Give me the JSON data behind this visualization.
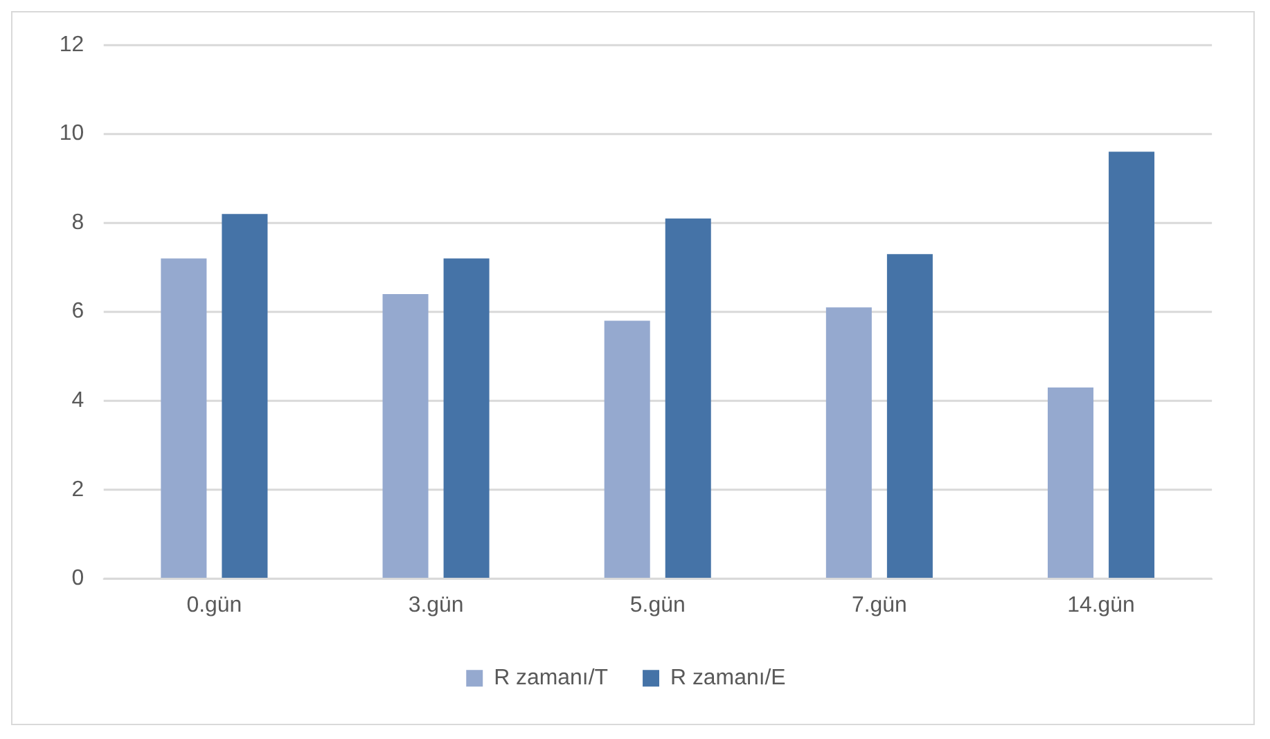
{
  "chart_data": {
    "type": "bar",
    "categories": [
      "0.gün",
      "3.gün",
      "5.gün",
      "7.gün",
      "14.gün"
    ],
    "series": [
      {
        "name": "R zamanı/T",
        "color": "#95a9cf",
        "values": [
          7.2,
          6.4,
          5.8,
          6.1,
          4.3
        ]
      },
      {
        "name": "R zamanı/E",
        "color": "#4573a7",
        "values": [
          8.2,
          7.2,
          8.1,
          7.3,
          9.6
        ]
      }
    ],
    "ylim": [
      0,
      12
    ],
    "yticks": [
      0,
      2,
      4,
      6,
      8,
      10,
      12
    ],
    "grid": "y",
    "legend": "bottom"
  }
}
